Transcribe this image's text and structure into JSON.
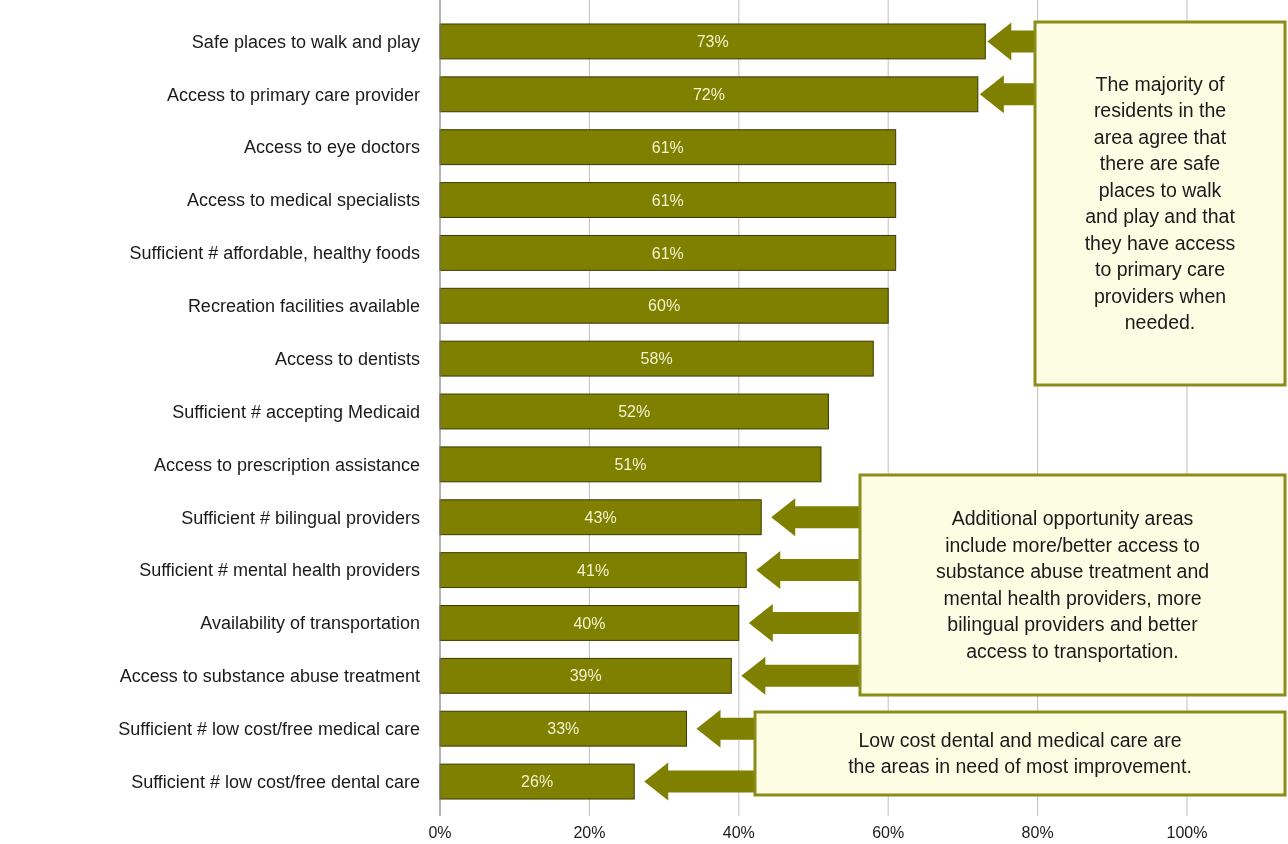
{
  "chart_data": {
    "type": "bar",
    "orientation": "horizontal",
    "categories": [
      "Safe places to walk and play",
      "Access to primary care provider",
      "Access to eye doctors",
      "Access to medical specialists",
      "Sufficient # affordable, healthy foods",
      "Recreation facilities available",
      "Access to dentists",
      "Sufficient # accepting Medicaid",
      "Access to prescription assistance",
      "Sufficient # bilingual providers",
      "Sufficient # mental health providers",
      "Availability of transportation",
      "Access to substance abuse treatment",
      "Sufficient # low cost/free medical care",
      "Sufficient # low cost/free dental care"
    ],
    "values": [
      73,
      72,
      61,
      61,
      61,
      60,
      58,
      52,
      51,
      43,
      41,
      40,
      39,
      33,
      26
    ],
    "value_labels": [
      "73%",
      "72%",
      "61%",
      "61%",
      "61%",
      "60%",
      "58%",
      "52%",
      "51%",
      "43%",
      "41%",
      "40%",
      "39%",
      "33%",
      "26%"
    ],
    "color": "#7f7f00",
    "xlim": [
      0,
      100
    ],
    "xticks": [
      {
        "value": 0,
        "label": "0%"
      },
      {
        "value": 20,
        "label": "20%"
      },
      {
        "value": 40,
        "label": "40%"
      },
      {
        "value": 60,
        "label": "60%"
      },
      {
        "value": 80,
        "label": "80%"
      },
      {
        "value": 100,
        "label": "100%"
      }
    ],
    "grid": "x",
    "annotations": [
      "The majority of residents in the area agree that there are safe places to walk and play and that they have access to primary care providers when needed.",
      "Additional opportunity areas include more/better access to substance abuse treatment and mental health providers, more bilingual providers and better access to transportation.",
      "Low cost dental and medical care are the areas in need of most improvement."
    ]
  }
}
